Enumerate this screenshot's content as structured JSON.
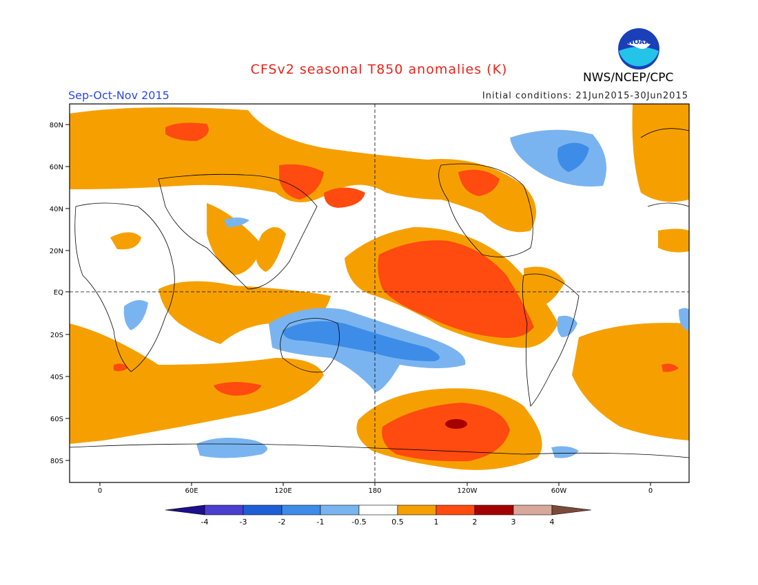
{
  "header": {
    "title": "CFSv2 seasonal T850 anomalies (K)",
    "org": "NWS/NCEP/CPC",
    "season": "Sep-Oct-Nov 2015",
    "initial_conditions": "Initial conditions: 21Jun2015-30Jun2015",
    "logo_text": "NOAA"
  },
  "axes": {
    "lat_labels": [
      "80N",
      "60N",
      "40N",
      "20N",
      "EQ",
      "20S",
      "40S",
      "60S",
      "80S"
    ],
    "lon_labels": [
      "0",
      "60E",
      "120E",
      "180",
      "120W",
      "60W",
      "0"
    ]
  },
  "colorbar": {
    "labels": [
      "-4",
      "-3",
      "-2",
      "-1",
      "-0.5",
      "0.5",
      "1",
      "2",
      "3",
      "4"
    ],
    "colors": [
      "#1d0f8c",
      "#4a3fcf",
      "#1f5fd6",
      "#3d8ce8",
      "#7ab4f0",
      "#ffffff",
      "#f5a000",
      "#ff4a10",
      "#a50000",
      "#d8a89a",
      "#7a4a3a"
    ]
  },
  "anomaly_colors": {
    "weak_warm": "#f5a000",
    "warm": "#ff4a10",
    "strong_warm": "#a50000",
    "weak_cold": "#7ab4f0",
    "cold": "#3d8ce8"
  }
}
